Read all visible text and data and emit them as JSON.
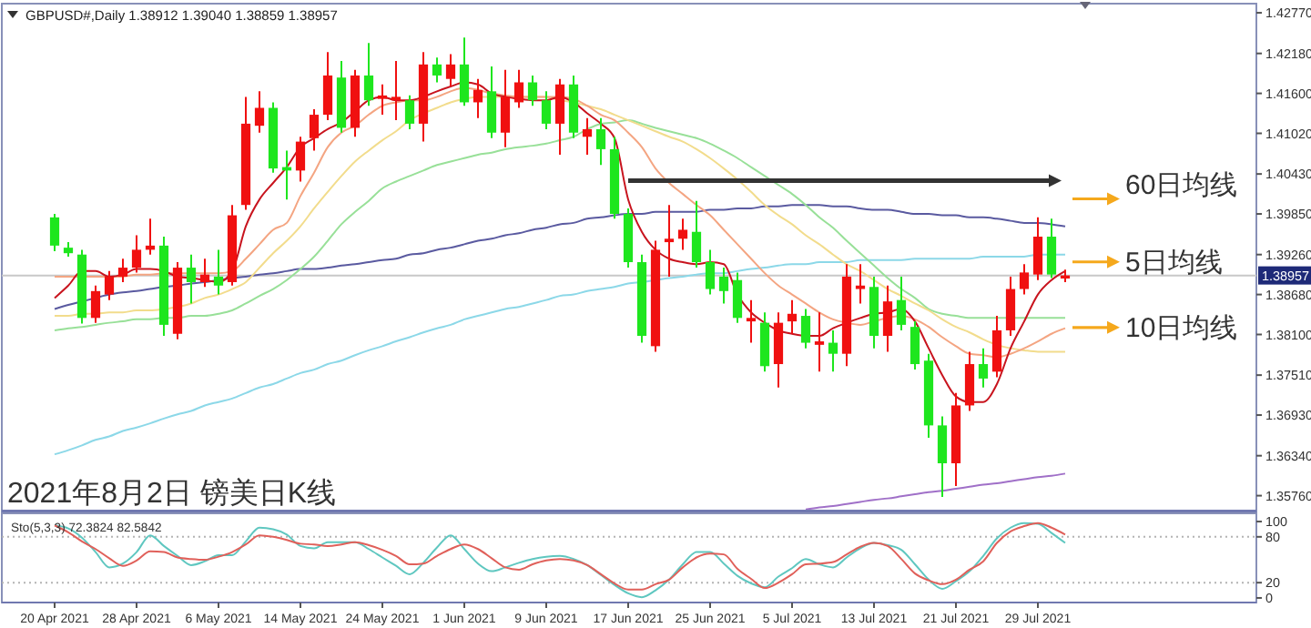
{
  "chart_data": [
    {
      "type": "candlestick",
      "title": "GBPUSD#,Daily  1.38912 1.39040 1.38859 1.38957",
      "subtitle": "2021年8月2日 镑美日K线",
      "categories": [
        null,
        null,
        null,
        null,
        null,
        null,
        null,
        null,
        null,
        null,
        null,
        null,
        null,
        null,
        null,
        null,
        null,
        null,
        null,
        null,
        null,
        null,
        null,
        null,
        null,
        null,
        null,
        null,
        null,
        null,
        null,
        null,
        null,
        null,
        null,
        null,
        null,
        null,
        null,
        null,
        null,
        null,
        null,
        null,
        null,
        null,
        null,
        null,
        null,
        null,
        null,
        null,
        null,
        null,
        null,
        null,
        null,
        null,
        null,
        null,
        null,
        null,
        null,
        null,
        null,
        null,
        null,
        null,
        null,
        null,
        null,
        null,
        null,
        null,
        null
      ],
      "ohlc": [
        [
          1.398,
          1.3985,
          1.3931,
          1.3939
        ],
        [
          1.3936,
          1.3944,
          1.3923,
          1.3928
        ],
        [
          1.3926,
          1.3933,
          1.3826,
          1.3834
        ],
        [
          1.3834,
          1.3881,
          1.3827,
          1.3873
        ],
        [
          1.3868,
          1.3902,
          1.386,
          1.3894
        ],
        [
          1.3894,
          1.392,
          1.3886,
          1.3907
        ],
        [
          1.3907,
          1.3954,
          1.39,
          1.3933
        ],
        [
          1.3933,
          1.3978,
          1.3926,
          1.3939
        ],
        [
          1.3939,
          1.3952,
          1.3808,
          1.3824
        ],
        [
          1.3811,
          1.3915,
          1.3803,
          1.3907
        ],
        [
          1.3907,
          1.3926,
          1.3855,
          1.3886
        ],
        [
          1.3886,
          1.392,
          1.3879,
          1.3897
        ],
        [
          1.3894,
          1.3933,
          1.3868,
          1.3881
        ],
        [
          1.3886,
          1.3998,
          1.3881,
          1.3983
        ],
        [
          1.3998,
          1.4155,
          1.3991,
          1.4116
        ],
        [
          1.4113,
          1.4163,
          1.4103,
          1.4139
        ],
        [
          1.4139,
          1.4147,
          1.4045,
          1.4051
        ],
        [
          1.4053,
          1.4077,
          1.4006,
          1.4048
        ],
        [
          1.4048,
          1.4097,
          1.4032,
          1.409
        ],
        [
          1.4095,
          1.4137,
          1.4077,
          1.4129
        ],
        [
          1.4129,
          1.422,
          1.4121,
          1.4186
        ],
        [
          1.4183,
          1.4207,
          1.4103,
          1.411
        ],
        [
          1.411,
          1.4194,
          1.4097,
          1.4186
        ],
        [
          1.4186,
          1.4233,
          1.4142,
          1.415
        ],
        [
          1.4152,
          1.4173,
          1.4129,
          1.4157
        ],
        [
          1.415,
          1.4207,
          1.4121,
          1.4155
        ],
        [
          1.415,
          1.4157,
          1.4108,
          1.4116
        ],
        [
          1.4116,
          1.422,
          1.409,
          1.4202
        ],
        [
          1.4202,
          1.4212,
          1.4176,
          1.4186
        ],
        [
          1.4181,
          1.4217,
          1.417,
          1.4202
        ],
        [
          1.4202,
          1.4241,
          1.4142,
          1.4147
        ],
        [
          1.4147,
          1.4181,
          1.4124,
          1.4165
        ],
        [
          1.4163,
          1.4199,
          1.4095,
          1.4103
        ],
        [
          1.4103,
          1.4194,
          1.4082,
          1.4155
        ],
        [
          1.4147,
          1.4194,
          1.4139,
          1.4176
        ],
        [
          1.4176,
          1.4186,
          1.4142,
          1.415
        ],
        [
          1.415,
          1.4163,
          1.4108,
          1.4116
        ],
        [
          1.4116,
          1.4181,
          1.4071,
          1.4173
        ],
        [
          1.4173,
          1.4186,
          1.4095,
          1.4103
        ],
        [
          1.4097,
          1.4124,
          1.4071,
          1.4108
        ],
        [
          1.4108,
          1.4124,
          1.4056,
          1.4079
        ],
        [
          1.4079,
          1.4097,
          1.3978,
          1.3985
        ],
        [
          1.3985,
          1.3993,
          1.3907,
          1.3915
        ],
        [
          1.3915,
          1.3926,
          1.3798,
          1.3808
        ],
        [
          1.3793,
          1.3946,
          1.3785,
          1.3933
        ],
        [
          1.3944,
          1.3998,
          1.3894,
          1.3949
        ],
        [
          1.3949,
          1.3978,
          1.3933,
          1.3962
        ],
        [
          1.3959,
          1.4004,
          1.3907,
          1.3915
        ],
        [
          1.3915,
          1.3933,
          1.3868,
          1.3876
        ],
        [
          1.3894,
          1.3907,
          1.3855,
          1.3873
        ],
        [
          1.3889,
          1.39,
          1.3827,
          1.3834
        ],
        [
          1.3829,
          1.386,
          1.3798,
          1.3834
        ],
        [
          1.3827,
          1.3842,
          1.3756,
          1.3764
        ],
        [
          1.3767,
          1.3842,
          1.3733,
          1.3827
        ],
        [
          1.3829,
          1.386,
          1.3811,
          1.384
        ],
        [
          1.3837,
          1.3847,
          1.379,
          1.3798
        ],
        [
          1.3795,
          1.3842,
          1.3756,
          1.38
        ],
        [
          1.3798,
          1.3816,
          1.3756,
          1.3782
        ],
        [
          1.3782,
          1.3912,
          1.3764,
          1.3894
        ],
        [
          1.3876,
          1.3912,
          1.3855,
          1.3881
        ],
        [
          1.3879,
          1.3894,
          1.379,
          1.3808
        ],
        [
          1.3808,
          1.3881,
          1.3785,
          1.3858
        ],
        [
          1.386,
          1.3894,
          1.3816,
          1.3824
        ],
        [
          1.3821,
          1.3829,
          1.3759,
          1.3767
        ],
        [
          1.3772,
          1.3782,
          1.366,
          1.3678
        ],
        [
          1.3678,
          1.3691,
          1.3574,
          1.3623
        ],
        [
          1.3623,
          1.3725,
          1.359,
          1.3707
        ],
        [
          1.3707,
          1.3785,
          1.3699,
          1.3767
        ],
        [
          1.3767,
          1.379,
          1.3733,
          1.3746
        ],
        [
          1.3756,
          1.3837,
          1.3748,
          1.3816
        ],
        [
          1.3816,
          1.3894,
          1.3808,
          1.3876
        ],
        [
          1.3876,
          1.3912,
          1.3868,
          1.39
        ],
        [
          1.3897,
          1.398,
          1.3889,
          1.3952
        ],
        [
          1.3952,
          1.3978,
          1.3892,
          1.3897
        ],
        [
          1.38912,
          1.3904,
          1.38859,
          1.38957
        ]
      ],
      "colors": [
        "#1ee61e",
        "#1ee61e",
        "#1ee61e",
        "#f01010",
        "#f01010",
        "#f01010",
        "#f01010",
        "#f01010",
        "#1ee61e",
        "#f01010",
        "#1ee61e",
        "#f01010",
        "#1ee61e",
        "#f01010",
        "#f01010",
        "#f01010",
        "#1ee61e",
        "#1ee61e",
        "#f01010",
        "#f01010",
        "#f01010",
        "#1ee61e",
        "#f01010",
        "#1ee61e",
        "#f01010",
        "#f01010",
        "#1ee61e",
        "#f01010",
        "#1ee61e",
        "#f01010",
        "#1ee61e",
        "#f01010",
        "#1ee61e",
        "#f01010",
        "#f01010",
        "#1ee61e",
        "#1ee61e",
        "#f01010",
        "#1ee61e",
        "#f01010",
        "#1ee61e",
        "#1ee61e",
        "#1ee61e",
        "#1ee61e",
        "#f01010",
        "#f01010",
        "#f01010",
        "#1ee61e",
        "#1ee61e",
        "#1ee61e",
        "#1ee61e",
        "#f01010",
        "#1ee61e",
        "#f01010",
        "#f01010",
        "#1ee61e",
        "#f01010",
        "#1ee61e",
        "#f01010",
        "#f01010",
        "#1ee61e",
        "#f01010",
        "#1ee61e",
        "#1ee61e",
        "#1ee61e",
        "#1ee61e",
        "#f01010",
        "#f01010",
        "#1ee61e",
        "#f01010",
        "#f01010",
        "#f01010",
        "#f01010",
        "#1ee61e",
        "#f01010"
      ],
      "series": [
        {
          "type": "line",
          "color": "#8cd8e8",
          "values": [
            1.3636,
            1.3642,
            1.3649,
            1.3657,
            1.3662,
            1.367,
            1.3675,
            1.3681,
            1.3688,
            1.3694,
            1.3699,
            1.3707,
            1.3712,
            1.3717,
            1.3725,
            1.3733,
            1.3738,
            1.3746,
            1.3754,
            1.3759,
            1.3767,
            1.3772,
            1.378,
            1.3787,
            1.3793,
            1.38,
            1.3806,
            1.3813,
            1.3819,
            1.3824,
            1.3832,
            1.3837,
            1.3842,
            1.3847,
            1.385,
            1.3855,
            1.386,
            1.3866,
            1.3868,
            1.3873,
            1.3876,
            1.3879,
            1.3884,
            1.3886,
            1.3889,
            1.3892,
            1.3894,
            1.3897,
            1.3899,
            1.3899,
            1.3902,
            1.3905,
            1.3907,
            1.391,
            1.3912,
            1.3912,
            1.3915,
            1.3915,
            1.3915,
            1.3918,
            1.3918,
            1.3918,
            1.3918,
            1.392,
            1.392,
            1.392,
            1.392,
            1.392,
            1.3923,
            1.3923,
            1.3923,
            1.3923,
            1.3926,
            1.3926,
            1.3926
          ]
        },
        {
          "type": "line",
          "color": "#5a5aa0",
          "values": [
            1.3847,
            1.3853,
            1.3858,
            1.3863,
            1.3868,
            1.3871,
            1.3873,
            1.3876,
            1.3879,
            1.3881,
            1.3884,
            1.3886,
            1.3889,
            1.3892,
            1.3894,
            1.3897,
            1.3899,
            1.3902,
            1.3905,
            1.3905,
            1.3907,
            1.391,
            1.3912,
            1.3915,
            1.3918,
            1.392,
            1.3926,
            1.3928,
            1.3933,
            1.3936,
            1.3941,
            1.3946,
            1.3949,
            1.3954,
            1.3957,
            1.3962,
            1.3965,
            1.397,
            1.3972,
            1.3978,
            1.398,
            1.3983,
            1.3985,
            1.3985,
            1.3988,
            1.3988,
            1.3988,
            1.3988,
            1.3991,
            1.3991,
            1.3993,
            1.3993,
            1.3996,
            1.3996,
            1.3998,
            1.3998,
            1.3998,
            1.3996,
            1.3996,
            1.3993,
            1.3991,
            1.3991,
            1.3988,
            1.3985,
            1.3985,
            1.3983,
            1.3983,
            1.398,
            1.398,
            1.3978,
            1.3975,
            1.3972,
            1.3972,
            1.397,
            1.3967
          ]
        },
        {
          "type": "line",
          "color": "#98e098",
          "values": [
            1.3816,
            1.3819,
            1.3821,
            1.3824,
            1.3827,
            1.3829,
            1.3832,
            1.3832,
            1.3834,
            1.3834,
            1.3837,
            1.3837,
            1.384,
            1.3845,
            1.3855,
            1.3866,
            1.3876,
            1.3889,
            1.3905,
            1.3923,
            1.3946,
            1.397,
            1.3988,
            1.4004,
            1.4022,
            1.4032,
            1.404,
            1.4048,
            1.4056,
            1.4061,
            1.4066,
            1.4071,
            1.4074,
            1.4079,
            1.4082,
            1.4084,
            1.4087,
            1.4092,
            1.4097,
            1.4108,
            1.4116,
            1.4118,
            1.4121,
            1.4116,
            1.411,
            1.4105,
            1.41,
            1.4095,
            1.4087,
            1.4077,
            1.4066,
            1.4053,
            1.404,
            1.4027,
            1.4014,
            1.3998,
            1.398,
            1.3965,
            1.3946,
            1.3928,
            1.391,
            1.3892,
            1.3876,
            1.3863,
            1.3847,
            1.384,
            1.3837,
            1.3834,
            1.3834,
            1.3834,
            1.3834,
            1.3834,
            1.3834,
            1.3834,
            1.3834
          ]
        },
        {
          "type": "line",
          "color": "#f2dc8c",
          "values": [
            1.3837,
            1.3837,
            1.384,
            1.384,
            1.3842,
            1.3842,
            1.3845,
            1.3845,
            1.3847,
            1.385,
            1.3855,
            1.3863,
            1.3868,
            1.3876,
            1.3886,
            1.3907,
            1.3928,
            1.3946,
            1.3967,
            1.3993,
            1.4017,
            1.404,
            1.4061,
            1.4077,
            1.4092,
            1.4105,
            1.4121,
            1.4131,
            1.4139,
            1.4147,
            1.4152,
            1.4155,
            1.4155,
            1.4155,
            1.4155,
            1.4155,
            1.4155,
            1.415,
            1.4147,
            1.4142,
            1.4137,
            1.4129,
            1.4121,
            1.4113,
            1.4105,
            1.4097,
            1.409,
            1.4079,
            1.4066,
            1.4051,
            1.4035,
            1.4017,
            1.3998,
            1.3983,
            1.397,
            1.3954,
            1.3941,
            1.3926,
            1.3912,
            1.3902,
            1.3889,
            1.3876,
            1.3866,
            1.3855,
            1.3845,
            1.3832,
            1.3821,
            1.3813,
            1.3803,
            1.3795,
            1.379,
            1.3787,
            1.3785,
            1.3785,
            1.3785
          ]
        },
        {
          "type": "line",
          "color": "#f4a582",
          "values": [
            1.3894,
            1.3894,
            1.3894,
            1.3894,
            1.3894,
            1.3894,
            1.3897,
            1.3897,
            1.3899,
            1.3899,
            1.3899,
            1.3899,
            1.3899,
            1.3902,
            1.392,
            1.3941,
            1.3962,
            1.3972,
            1.4011,
            1.4045,
            1.4082,
            1.4103,
            1.4113,
            1.4129,
            1.4142,
            1.4147,
            1.415,
            1.415,
            1.4155,
            1.4163,
            1.4168,
            1.4165,
            1.416,
            1.4157,
            1.4155,
            1.4155,
            1.4155,
            1.4155,
            1.4152,
            1.4142,
            1.4129,
            1.4121,
            1.4103,
            1.4082,
            1.4051,
            1.403,
            1.4014,
            1.3998,
            1.3983,
            1.3962,
            1.3941,
            1.392,
            1.3899,
            1.3881,
            1.3868,
            1.3855,
            1.3842,
            1.3832,
            1.3827,
            1.3824,
            1.3829,
            1.3834,
            1.3837,
            1.3832,
            1.3821,
            1.3806,
            1.3793,
            1.3782,
            1.378,
            1.3777,
            1.3782,
            1.379,
            1.38,
            1.3811,
            1.3819
          ]
        },
        {
          "type": "line",
          "color": "#c8141e",
          "values": [
            1.3863,
            1.3881,
            1.3902,
            1.3902,
            1.3894,
            1.3897,
            1.3905,
            1.3905,
            1.3902,
            1.3894,
            1.3892,
            1.3889,
            1.3886,
            1.3902,
            1.3967,
            1.4006,
            1.403,
            1.4053,
            1.4082,
            1.4095,
            1.4108,
            1.4118,
            1.4134,
            1.415,
            1.4155,
            1.415,
            1.415,
            1.4155,
            1.4163,
            1.417,
            1.4176,
            1.4173,
            1.416,
            1.4155,
            1.4152,
            1.415,
            1.415,
            1.4155,
            1.4147,
            1.4131,
            1.4116,
            1.4095,
            1.4006,
            1.3959,
            1.3933,
            1.392,
            1.3915,
            1.3912,
            1.3915,
            1.3912,
            1.3868,
            1.3842,
            1.3827,
            1.3816,
            1.3811,
            1.3808,
            1.3808,
            1.3819,
            1.3827,
            1.3834,
            1.384,
            1.3842,
            1.3847,
            1.3829,
            1.379,
            1.3751,
            1.372,
            1.3712,
            1.3712,
            1.3738,
            1.379,
            1.3829,
            1.3868,
            1.3889,
            1.3902
          ]
        },
        {
          "type": "line",
          "color": "#a070c8",
          "values": [
            null,
            null,
            null,
            null,
            null,
            null,
            null,
            null,
            null,
            null,
            null,
            null,
            null,
            null,
            null,
            null,
            null,
            null,
            null,
            null,
            null,
            null,
            null,
            null,
            null,
            null,
            null,
            null,
            null,
            null,
            null,
            null,
            null,
            null,
            null,
            null,
            null,
            null,
            null,
            null,
            null,
            null,
            null,
            null,
            null,
            null,
            null,
            null,
            null,
            null,
            null,
            null,
            null,
            null,
            null,
            1.3556,
            1.3559,
            1.3561,
            1.3564,
            1.3567,
            1.357,
            1.3572,
            1.3575,
            1.3578,
            1.3581,
            1.3583,
            1.3586,
            1.3589,
            1.3592,
            1.3594,
            1.3597,
            1.36,
            1.3603,
            1.3605,
            1.3608
          ]
        }
      ],
      "ylim": [
        1.3553,
        1.4285
      ],
      "yticks": [
        {
          "value": 1.3576,
          "label": "1.35760"
        },
        {
          "value": 1.3634,
          "label": "1.36340"
        },
        {
          "value": 1.3693,
          "label": "1.36930"
        },
        {
          "value": 1.3751,
          "label": "1.37510"
        },
        {
          "value": 1.381,
          "label": "1.38100"
        },
        {
          "value": 1.3868,
          "label": "1.38680"
        },
        {
          "value": 1.3926,
          "label": "1.39260"
        },
        {
          "value": 1.3985,
          "label": "1.39850"
        },
        {
          "value": 1.4043,
          "label": "1.40430"
        },
        {
          "value": 1.4102,
          "label": "1.41020"
        },
        {
          "value": 1.416,
          "label": "1.41600"
        },
        {
          "value": 1.4218,
          "label": "1.42180"
        },
        {
          "value": 1.4277,
          "label": "1.42770"
        }
      ],
      "ref_lines": [
        {
          "axis": "y",
          "value": 1.38957,
          "label": "1.38957",
          "color": "#c8c8c8"
        }
      ],
      "annotations": [
        "60日均线",
        "5日均线",
        "10日均线"
      ],
      "tick_labels": "y"
    },
    {
      "type": "line",
      "title": "Sto(5,3,3) 72.3824 82.5842",
      "categories": [
        "20 Apr 2021",
        null,
        null,
        null,
        null,
        null,
        "28 Apr 2021",
        null,
        null,
        null,
        null,
        null,
        "6 May 2021",
        null,
        null,
        null,
        null,
        null,
        "14 May 2021",
        null,
        null,
        null,
        null,
        null,
        "24 May 2021",
        null,
        null,
        null,
        null,
        null,
        "1 Jun 2021",
        null,
        null,
        null,
        null,
        null,
        "9 Jun 2021",
        null,
        null,
        null,
        null,
        null,
        "17 Jun 2021",
        null,
        null,
        null,
        null,
        null,
        "25 Jun 2021",
        null,
        null,
        null,
        null,
        null,
        "5 Jul 2021",
        null,
        null,
        null,
        null,
        null,
        "13 Jul 2021",
        null,
        null,
        null,
        null,
        null,
        "21 Jul 2021",
        null,
        null,
        null,
        null,
        null,
        "29 Jul 2021",
        null,
        null
      ],
      "series": [
        {
          "type": "line",
          "color": "#5fc7c0",
          "values": [
            95,
            91,
            79,
            60,
            40,
            45,
            60,
            82,
            68,
            55,
            43,
            48,
            56,
            56,
            74,
            92,
            90,
            83,
            68,
            65,
            73,
            73,
            73,
            64,
            53,
            42,
            31,
            46,
            66,
            82,
            64,
            45,
            35,
            40,
            46,
            51,
            54,
            55,
            51,
            43,
            30,
            17,
            6,
            1,
            10,
            24,
            44,
            60,
            60,
            45,
            29,
            19,
            14,
            28,
            39,
            51,
            44,
            40,
            53,
            65,
            72,
            69,
            63,
            44,
            24,
            12,
            22,
            35,
            55,
            78,
            92,
            98,
            97,
            85,
            72
          ]
        },
        {
          "type": "line",
          "color": "#e0605a",
          "values": [
            95,
            86,
            74,
            64,
            52,
            42,
            49,
            61,
            60,
            53,
            51,
            50,
            54,
            60,
            70,
            82,
            80,
            76,
            71,
            70,
            68,
            70,
            73,
            69,
            63,
            55,
            44,
            45,
            55,
            64,
            70,
            64,
            52,
            40,
            37,
            44,
            49,
            51,
            49,
            43,
            31,
            19,
            11,
            11,
            18,
            24,
            40,
            53,
            58,
            57,
            38,
            25,
            13,
            20,
            31,
            44,
            45,
            47,
            57,
            67,
            72,
            68,
            51,
            32,
            23,
            18,
            24,
            37,
            48,
            72,
            87,
            94,
            98,
            92,
            83
          ]
        }
      ],
      "ylim": [
        -6,
        106
      ],
      "yticks": [
        0,
        20,
        80,
        100
      ],
      "ref_lines": [
        {
          "axis": "y",
          "value": 80,
          "color": "#b4b4b4",
          "line_style": "dotted"
        },
        {
          "axis": "y",
          "value": 20,
          "color": "#b4b4b4",
          "line_style": "dotted"
        }
      ]
    }
  ]
}
